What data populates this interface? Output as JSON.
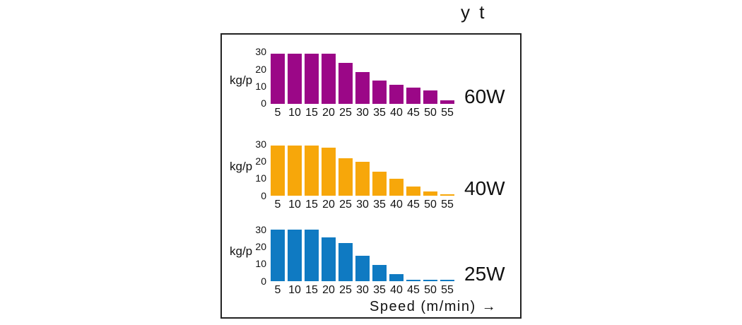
{
  "title": "y t",
  "xaxis": {
    "label": "Speed (m/min)",
    "arrow": "→"
  },
  "chart_data": [
    {
      "type": "bar",
      "label": "60W",
      "color": "#9B0787",
      "ylabel": "kg/p",
      "categories": [
        5,
        10,
        15,
        20,
        25,
        30,
        35,
        40,
        45,
        50,
        55
      ],
      "values": [
        29.5,
        29.5,
        29.5,
        29.5,
        24,
        18.5,
        13.5,
        11,
        9.5,
        8,
        2
      ],
      "yticks": [
        0,
        10,
        20,
        30
      ],
      "ylim": [
        0,
        30
      ],
      "grid": false,
      "legend_position": "right-of-plot"
    },
    {
      "type": "bar",
      "label": "40W",
      "color": "#F7A70A",
      "ylabel": "kg/p",
      "categories": [
        5,
        10,
        15,
        20,
        25,
        30,
        35,
        40,
        45,
        50,
        55
      ],
      "values": [
        29.5,
        29.5,
        29.5,
        28,
        22,
        20,
        14,
        10,
        5.5,
        2.5,
        1
      ],
      "yticks": [
        0,
        10,
        20,
        30
      ],
      "ylim": [
        0,
        30
      ],
      "grid": false,
      "legend_position": "right-of-plot"
    },
    {
      "type": "bar",
      "label": "25W",
      "color": "#0F7AC2",
      "ylabel": "kg/p",
      "categories": [
        5,
        10,
        15,
        20,
        25,
        30,
        35,
        40,
        45,
        50,
        55
      ],
      "values": [
        30,
        30,
        30,
        25.5,
        22.5,
        15,
        9.5,
        4,
        1,
        1,
        1
      ],
      "yticks": [
        0,
        10,
        20,
        30
      ],
      "ylim": [
        0,
        30
      ],
      "grid": false,
      "legend_position": "right-of-plot",
      "xlabel": "Speed (m/min)"
    }
  ]
}
